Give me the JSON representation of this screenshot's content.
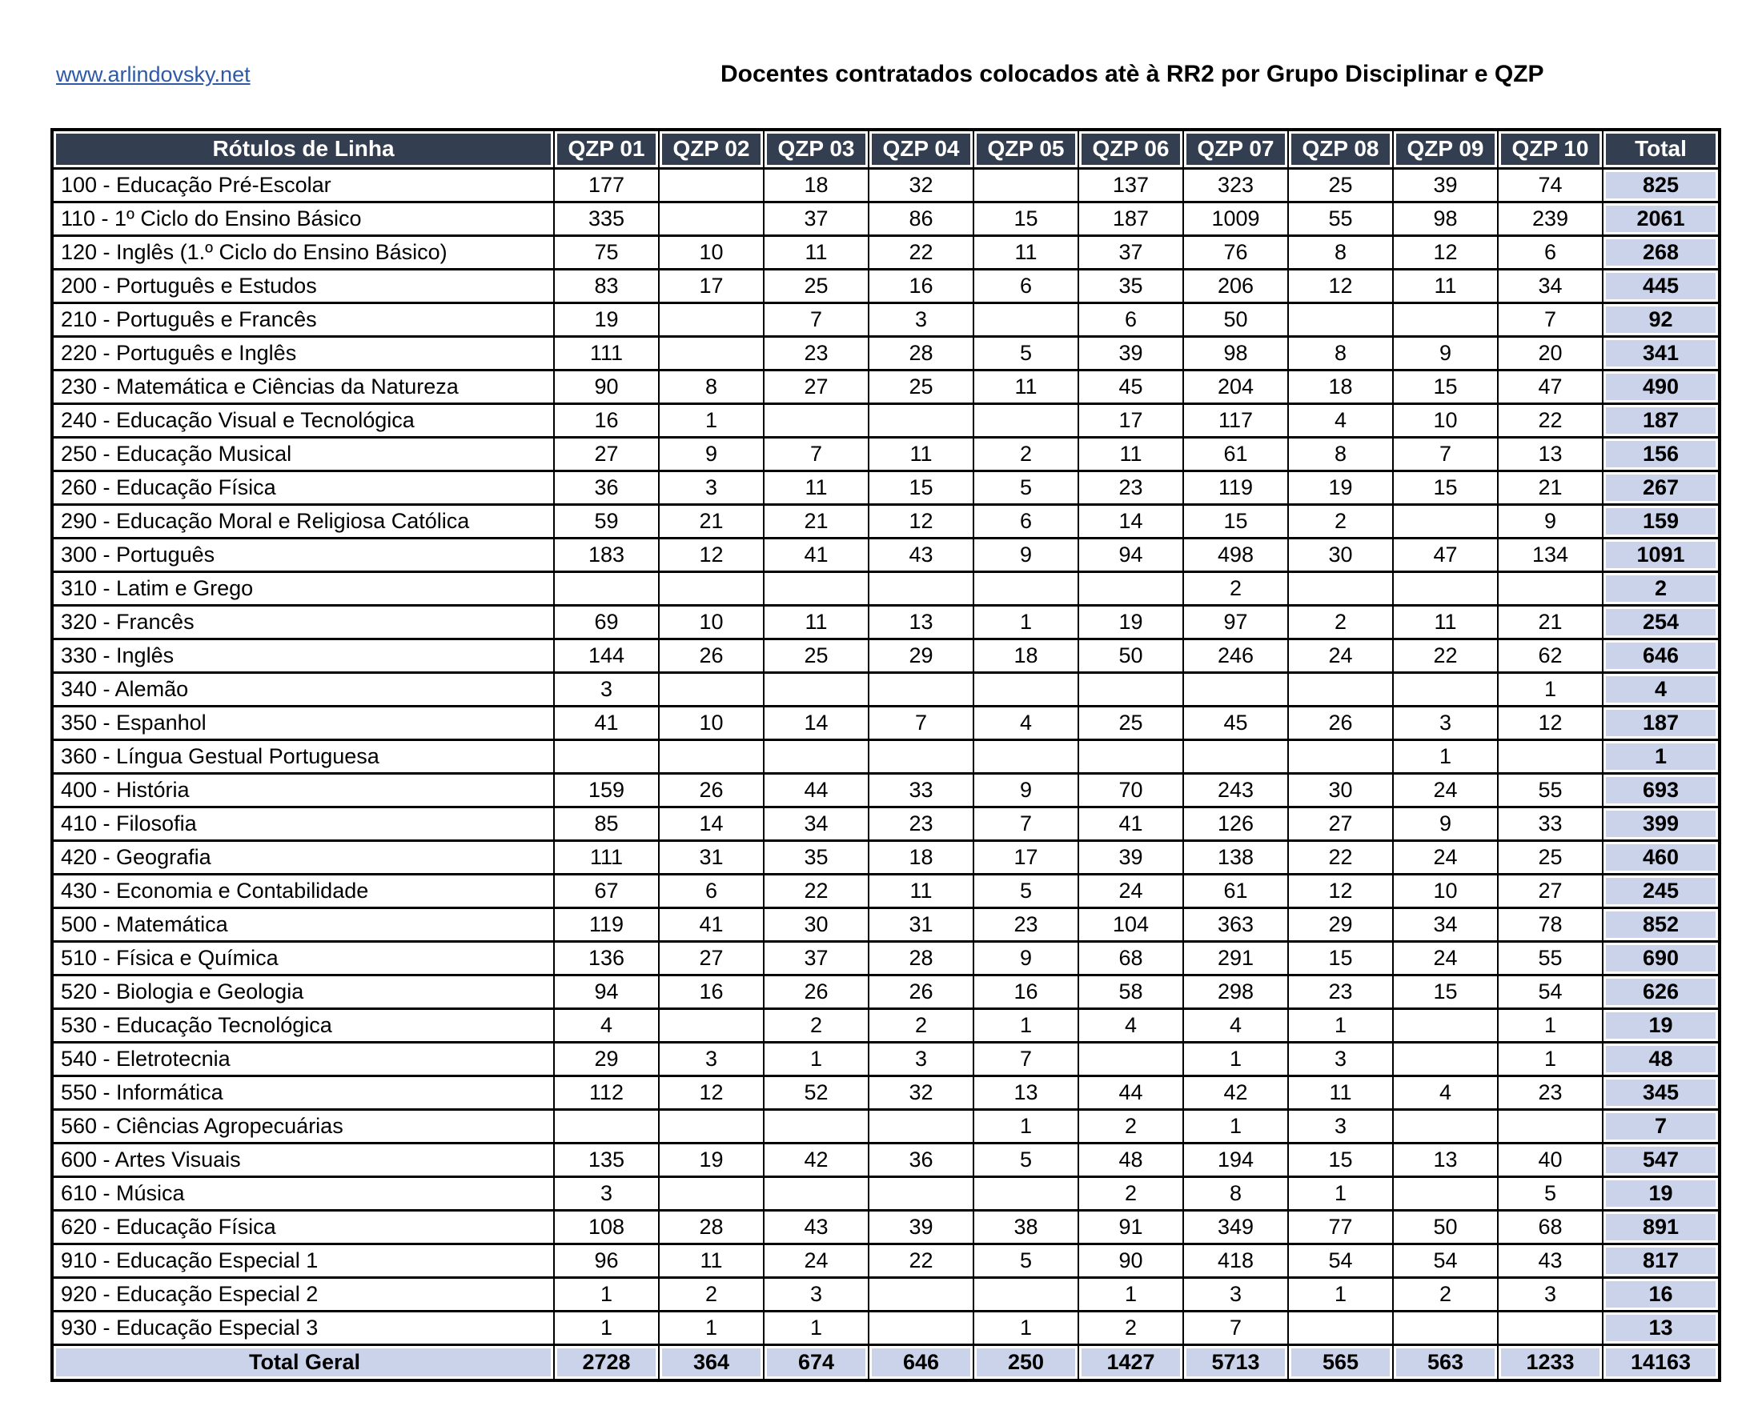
{
  "page": {
    "link": "www.arlindovsky.net",
    "title": "Docentes contratados colocados atè à RR2 por Grupo Disciplinar e QZP"
  },
  "colors": {
    "header_bg": "#333F50",
    "header_text": "#FFFFFF",
    "total_bg": "#CAD3E9",
    "link_color": "#2E5AA5",
    "border": "#000000"
  },
  "table": {
    "label_header": "Rótulos de Linha",
    "columns": [
      "QZP 01",
      "QZP 02",
      "QZP 03",
      "QZP 04",
      "QZP 05",
      "QZP 06",
      "QZP 07",
      "QZP 08",
      "QZP 09",
      "QZP 10",
      "Total"
    ],
    "rows": [
      {
        "label": "100 - Educação Pré-Escolar",
        "values": [
          "177",
          "",
          "18",
          "32",
          "",
          "137",
          "323",
          "25",
          "39",
          "74",
          "825"
        ]
      },
      {
        "label": "110 - 1º Ciclo do Ensino Básico",
        "values": [
          "335",
          "",
          "37",
          "86",
          "15",
          "187",
          "1009",
          "55",
          "98",
          "239",
          "2061"
        ]
      },
      {
        "label": "120 - Inglês (1.º Ciclo do Ensino Básico)",
        "values": [
          "75",
          "10",
          "11",
          "22",
          "11",
          "37",
          "76",
          "8",
          "12",
          "6",
          "268"
        ]
      },
      {
        "label": "200 - Português e Estudos",
        "values": [
          "83",
          "17",
          "25",
          "16",
          "6",
          "35",
          "206",
          "12",
          "11",
          "34",
          "445"
        ]
      },
      {
        "label": "210 - Português e Francês",
        "values": [
          "19",
          "",
          "7",
          "3",
          "",
          "6",
          "50",
          "",
          "",
          "7",
          "92"
        ]
      },
      {
        "label": "220 - Português e Inglês",
        "values": [
          "111",
          "",
          "23",
          "28",
          "5",
          "39",
          "98",
          "8",
          "9",
          "20",
          "341"
        ]
      },
      {
        "label": "230 - Matemática e Ciências da Natureza",
        "values": [
          "90",
          "8",
          "27",
          "25",
          "11",
          "45",
          "204",
          "18",
          "15",
          "47",
          "490"
        ]
      },
      {
        "label": "240 - Educação Visual e Tecnológica",
        "values": [
          "16",
          "1",
          "",
          "",
          "",
          "17",
          "117",
          "4",
          "10",
          "22",
          "187"
        ]
      },
      {
        "label": "250 - Educação Musical",
        "values": [
          "27",
          "9",
          "7",
          "11",
          "2",
          "11",
          "61",
          "8",
          "7",
          "13",
          "156"
        ]
      },
      {
        "label": "260 - Educação Física",
        "values": [
          "36",
          "3",
          "11",
          "15",
          "5",
          "23",
          "119",
          "19",
          "15",
          "21",
          "267"
        ]
      },
      {
        "label": "290 - Educação Moral e Religiosa Católica",
        "values": [
          "59",
          "21",
          "21",
          "12",
          "6",
          "14",
          "15",
          "2",
          "",
          "9",
          "159"
        ]
      },
      {
        "label": "300 - Português",
        "values": [
          "183",
          "12",
          "41",
          "43",
          "9",
          "94",
          "498",
          "30",
          "47",
          "134",
          "1091"
        ]
      },
      {
        "label": "310 - Latim e Grego",
        "values": [
          "",
          "",
          "",
          "",
          "",
          "",
          "2",
          "",
          "",
          "",
          "2"
        ]
      },
      {
        "label": "320 - Francês",
        "values": [
          "69",
          "10",
          "11",
          "13",
          "1",
          "19",
          "97",
          "2",
          "11",
          "21",
          "254"
        ]
      },
      {
        "label": "330 - Inglês",
        "values": [
          "144",
          "26",
          "25",
          "29",
          "18",
          "50",
          "246",
          "24",
          "22",
          "62",
          "646"
        ]
      },
      {
        "label": "340 - Alemão",
        "values": [
          "3",
          "",
          "",
          "",
          "",
          "",
          "",
          "",
          "",
          "1",
          "4"
        ]
      },
      {
        "label": "350 - Espanhol",
        "values": [
          "41",
          "10",
          "14",
          "7",
          "4",
          "25",
          "45",
          "26",
          "3",
          "12",
          "187"
        ]
      },
      {
        "label": "360 - Língua Gestual Portuguesa",
        "values": [
          "",
          "",
          "",
          "",
          "",
          "",
          "",
          "",
          "1",
          "",
          "1"
        ]
      },
      {
        "label": "400 - História",
        "values": [
          "159",
          "26",
          "44",
          "33",
          "9",
          "70",
          "243",
          "30",
          "24",
          "55",
          "693"
        ]
      },
      {
        "label": "410 - Filosofia",
        "values": [
          "85",
          "14",
          "34",
          "23",
          "7",
          "41",
          "126",
          "27",
          "9",
          "33",
          "399"
        ]
      },
      {
        "label": "420 - Geografia",
        "values": [
          "111",
          "31",
          "35",
          "18",
          "17",
          "39",
          "138",
          "22",
          "24",
          "25",
          "460"
        ]
      },
      {
        "label": "430 - Economia e Contabilidade",
        "values": [
          "67",
          "6",
          "22",
          "11",
          "5",
          "24",
          "61",
          "12",
          "10",
          "27",
          "245"
        ]
      },
      {
        "label": "500 - Matemática",
        "values": [
          "119",
          "41",
          "30",
          "31",
          "23",
          "104",
          "363",
          "29",
          "34",
          "78",
          "852"
        ]
      },
      {
        "label": "510 - Física e Química",
        "values": [
          "136",
          "27",
          "37",
          "28",
          "9",
          "68",
          "291",
          "15",
          "24",
          "55",
          "690"
        ]
      },
      {
        "label": "520 - Biologia e Geologia",
        "values": [
          "94",
          "16",
          "26",
          "26",
          "16",
          "58",
          "298",
          "23",
          "15",
          "54",
          "626"
        ]
      },
      {
        "label": "530 - Educação Tecnológica",
        "values": [
          "4",
          "",
          "2",
          "2",
          "1",
          "4",
          "4",
          "1",
          "",
          "1",
          "19"
        ]
      },
      {
        "label": "540 - Eletrotecnia",
        "values": [
          "29",
          "3",
          "1",
          "3",
          "7",
          "",
          "1",
          "3",
          "",
          "1",
          "48"
        ]
      },
      {
        "label": "550 - Informática",
        "values": [
          "112",
          "12",
          "52",
          "32",
          "13",
          "44",
          "42",
          "11",
          "4",
          "23",
          "345"
        ]
      },
      {
        "label": "560 - Ciências Agropecuárias",
        "values": [
          "",
          "",
          "",
          "",
          "1",
          "2",
          "1",
          "3",
          "",
          "",
          "7"
        ]
      },
      {
        "label": "600 - Artes Visuais",
        "values": [
          "135",
          "19",
          "42",
          "36",
          "5",
          "48",
          "194",
          "15",
          "13",
          "40",
          "547"
        ]
      },
      {
        "label": "610 - Música",
        "values": [
          "3",
          "",
          "",
          "",
          "",
          "2",
          "8",
          "1",
          "",
          "5",
          "19"
        ]
      },
      {
        "label": "620 - Educação Física",
        "values": [
          "108",
          "28",
          "43",
          "39",
          "38",
          "91",
          "349",
          "77",
          "50",
          "68",
          "891"
        ]
      },
      {
        "label": "910 - Educação Especial 1",
        "values": [
          "96",
          "11",
          "24",
          "22",
          "5",
          "90",
          "418",
          "54",
          "54",
          "43",
          "817"
        ]
      },
      {
        "label": "920 - Educação Especial 2",
        "values": [
          "1",
          "2",
          "3",
          "",
          "",
          "1",
          "3",
          "1",
          "2",
          "3",
          "16"
        ]
      },
      {
        "label": "930 - Educação Especial 3",
        "values": [
          "1",
          "1",
          "1",
          "",
          "1",
          "2",
          "7",
          "",
          "",
          "",
          "13"
        ]
      }
    ],
    "total_row": {
      "label": "Total Geral",
      "values": [
        "2728",
        "364",
        "674",
        "646",
        "250",
        "1427",
        "5713",
        "565",
        "563",
        "1233",
        "14163"
      ]
    }
  }
}
